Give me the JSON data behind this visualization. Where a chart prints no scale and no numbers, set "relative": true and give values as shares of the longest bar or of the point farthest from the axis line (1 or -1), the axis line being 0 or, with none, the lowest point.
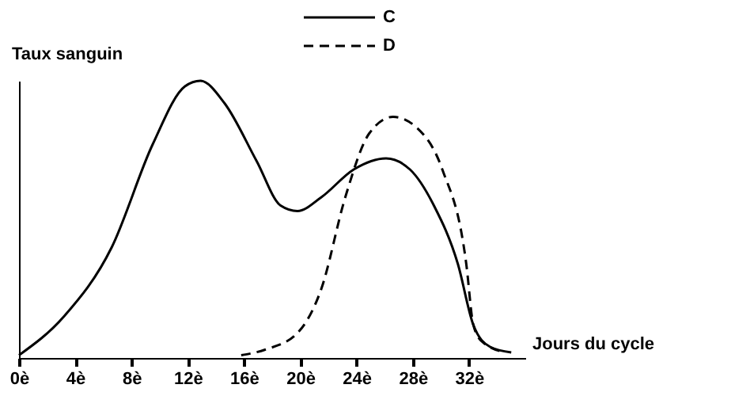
{
  "chart_data": {
    "type": "line",
    "relative": true,
    "xlabel": "Jours du cycle",
    "ylabel": "Taux sanguin",
    "xlim": [
      0,
      36
    ],
    "xticks": [
      {
        "value": 0,
        "label": "0è"
      },
      {
        "value": 4,
        "label": "4è"
      },
      {
        "value": 8,
        "label": "8è"
      },
      {
        "value": 12,
        "label": "12è"
      },
      {
        "value": 16,
        "label": "16è"
      },
      {
        "value": 20,
        "label": "20è"
      },
      {
        "value": 24,
        "label": "24è"
      },
      {
        "value": 28,
        "label": "28è"
      },
      {
        "value": 32,
        "label": "32è"
      }
    ],
    "legend": "top",
    "grid": false,
    "marker": "none",
    "series": [
      {
        "name": "C",
        "color": "#000000",
        "line_style": "solid",
        "x": [
          0,
          3.2,
          6.6,
          9.5,
          11.8,
          12.9,
          14.6,
          16.9,
          18.6,
          19.8,
          21.5,
          23.8,
          26.1,
          27.8,
          29.5,
          31.2,
          32.3,
          33.5,
          35.0
        ],
        "values": [
          0.01,
          0.15,
          0.4,
          0.77,
          0.98,
          1.0,
          0.92,
          0.71,
          0.55,
          0.53,
          0.58,
          0.68,
          0.72,
          0.68,
          0.55,
          0.34,
          0.12,
          0.04,
          0.02
        ]
      },
      {
        "name": "D",
        "color": "#000000",
        "line_style": "dashed",
        "x": [
          15.8,
          17.5,
          19.8,
          21.5,
          23.2,
          24.9,
          26.6,
          28.3,
          30.1,
          31.8,
          32.3,
          32.9,
          34.6
        ],
        "values": [
          0.01,
          0.03,
          0.09,
          0.25,
          0.58,
          0.81,
          0.87,
          0.83,
          0.68,
          0.34,
          0.12,
          0.06,
          0.02
        ]
      }
    ]
  }
}
